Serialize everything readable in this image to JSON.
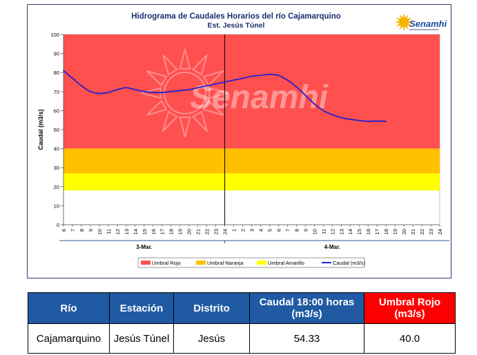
{
  "chart_data": {
    "type": "line",
    "title": "Hidrograma de Caudales Horarios del río Cajamarquino",
    "subtitle": "Est. Jesús Túnel",
    "ylabel": "Caudal  (m3/s)",
    "ylim": [
      0,
      100
    ],
    "yticks": [
      "0",
      "10",
      "20",
      "30",
      "40",
      "50",
      "60",
      "70",
      "80",
      "90",
      "100"
    ],
    "xticks": [
      "6",
      "7",
      "8",
      "9",
      "10",
      "11",
      "12",
      "13",
      "14",
      "15",
      "16",
      "17",
      "18",
      "19",
      "20",
      "21",
      "22",
      "23",
      "24",
      "1",
      "2",
      "3",
      "4",
      "5",
      "6",
      "7",
      "8",
      "9",
      "10",
      "11",
      "12",
      "13",
      "14",
      "15",
      "16",
      "17",
      "18",
      "19",
      "20",
      "21",
      "22",
      "23",
      "24"
    ],
    "day_labels": [
      "3-Mar.",
      "4-Mar."
    ],
    "bands": [
      {
        "name": "Umbral Rojo",
        "from": 40,
        "to": 100,
        "color": "#ff5050"
      },
      {
        "name": "Umbral Naranja",
        "from": 27,
        "to": 40,
        "color": "#ffc000"
      },
      {
        "name": "Umbral Amarillo",
        "from": 18,
        "to": 27,
        "color": "#ffff00"
      }
    ],
    "series": [
      {
        "name": "Caudal (m3/s)",
        "color": "#1f1fcf",
        "x_index": [
          0,
          1,
          2,
          3,
          4,
          5,
          6,
          7,
          8,
          9,
          10,
          11,
          12,
          13,
          14,
          15,
          16,
          17,
          18,
          19,
          20,
          21,
          22,
          23,
          24,
          25,
          26,
          27,
          28,
          29,
          30,
          31,
          32,
          33,
          34,
          35,
          36
        ],
        "values": [
          81,
          77,
          73,
          70,
          69,
          69.5,
          71,
          72,
          71,
          70,
          69.5,
          69.5,
          70,
          70.5,
          71,
          72,
          73,
          74,
          75,
          76,
          77,
          78,
          78.5,
          79,
          78.5,
          76,
          72.5,
          68,
          63.5,
          60,
          57.8,
          56.3,
          55.4,
          54.8,
          54.33,
          54.5,
          54.33
        ]
      }
    ],
    "legend": [
      "Umbral Rojo",
      "Umbral Naranja",
      "Umbral Amarillo",
      "Caudal (m3/s)"
    ],
    "legend_position": "bottom",
    "watermark": "Senamhi"
  },
  "brand": {
    "logo_text": "Senamhi",
    "sun_color": "#f5b400",
    "text_color": "#1c4aa0"
  },
  "table": {
    "headers": [
      "Río",
      "Estación",
      "Distrito",
      "Caudal  18:00 horas (m3/s)",
      "Umbral Rojo (m3/s)"
    ],
    "row": [
      "Cajamarquino",
      "Jesús Túnel",
      "Jesús",
      "54.33",
      "40.0"
    ]
  },
  "colors": {
    "header_blue": "#1f5aa3",
    "header_red": "#ff0000"
  }
}
